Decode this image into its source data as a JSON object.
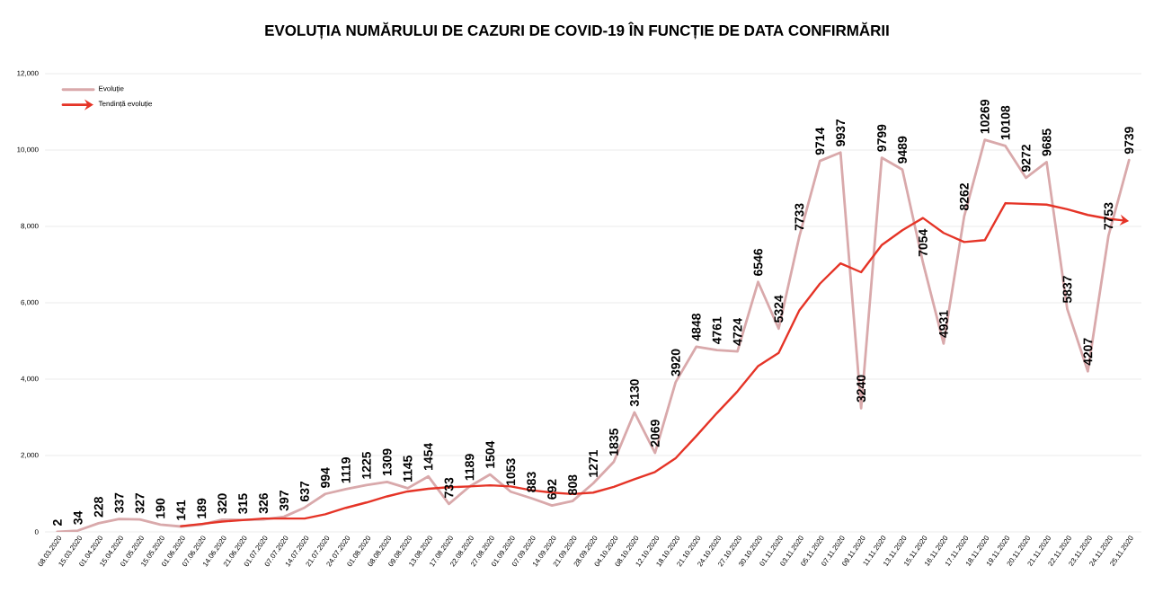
{
  "chart_data": {
    "type": "line",
    "title": "EVOLUȚIA NUMĂRULUI DE CAZURI DE COVID-19 ÎN FUNCȚIE DE DATA CONFIRMĂRII",
    "categories": [
      "08.03.2020",
      "15.03.2020",
      "01.04.2020",
      "15.04.2020",
      "01.05.2020",
      "15.05.2020",
      "01.06.2020",
      "07.06.2020",
      "14.06.2020",
      "21.06.2020",
      "01.07.2020",
      "07.07.2020",
      "14.07.2020",
      "21.07.2020",
      "24.07.2020",
      "01.08.2020",
      "08.08.2020",
      "09.08.2020",
      "13.08.2020",
      "17.08.2020",
      "22.08.2020",
      "27.08.2020",
      "01.09.2020",
      "07.09.2020",
      "14.09.2020",
      "21.09.2020",
      "28.09.2020",
      "04.10.2020",
      "08.10.2020",
      "12.10.2020",
      "18.10.2020",
      "21.10.2020",
      "24.10.2020",
      "27.10.2020",
      "30.10.2020",
      "01.11.2020",
      "03.11.2020",
      "05.11.2020",
      "07.11.2020",
      "09.11.2020",
      "11.11.2020",
      "13.11.2020",
      "15.11.2020",
      "16.11.2020",
      "17.11.2020",
      "18.11.2020",
      "19.11.2020",
      "20.11.2020",
      "21.11.2020",
      "22.11.2020",
      "23.11.2020",
      "24.11.2020",
      "25.11.2020"
    ],
    "series": [
      {
        "name": "Evoluție",
        "color": "#d9a9ab",
        "values": [
          2,
          34,
          228,
          337,
          327,
          190,
          141,
          189,
          320,
          315,
          326,
          397,
          637,
          994,
          1119,
          1225,
          1309,
          1145,
          1454,
          733,
          1189,
          1504,
          1053,
          883,
          692,
          808,
          1271,
          1835,
          3130,
          2069,
          3920,
          4848,
          4761,
          4724,
          6546,
          5324,
          7733,
          9714,
          9937,
          3240,
          9799,
          9489,
          7054,
          4931,
          8262,
          10269,
          10108,
          9272,
          9685,
          5837,
          4207,
          7753,
          9739
        ],
        "value_labels": [
          "2",
          "34",
          "228",
          "337",
          "327",
          "190",
          "141",
          "189",
          "320",
          "315",
          "326",
          "397",
          "637",
          "994",
          "1119",
          "1225",
          "1309",
          "1145",
          "1454",
          "733",
          "1189",
          "1504",
          "1053",
          "883",
          "692",
          "808",
          "1271",
          "1835",
          "3130",
          "2069",
          "3920",
          "4848",
          "4761",
          "4724",
          "6546",
          "5324",
          "7733",
          "9714",
          "9937",
          "3240",
          "9799",
          "9489",
          "7054",
          "4931",
          "8262",
          "10269",
          "10108",
          "9272",
          "9685",
          "5837",
          "4207",
          "7753",
          "9739"
        ]
      },
      {
        "name": "Tendință evoluție",
        "color": "#e53427",
        "values": [
          null,
          null,
          null,
          null,
          null,
          null,
          150,
          210,
          270,
          310,
          350,
          350,
          350,
          460,
          630,
          770,
          930,
          1060,
          1130,
          1170,
          1190,
          1220,
          1190,
          1090,
          1030,
          990,
          1030,
          1180,
          1380,
          1570,
          1930,
          2510,
          3110,
          3680,
          4340,
          4690,
          5800,
          6500,
          7030,
          6800,
          7510,
          7900,
          8220,
          7830,
          7590,
          7640,
          8610,
          8590,
          8570,
          8450,
          8300,
          8200,
          8140
        ]
      }
    ],
    "ylim": [
      0,
      12000
    ],
    "yticks": [
      {
        "value": 0,
        "label": "0"
      },
      {
        "value": 2000,
        "label": "2,000"
      },
      {
        "value": 4000,
        "label": "4,000"
      },
      {
        "value": 6000,
        "label": "6,000"
      },
      {
        "value": 8000,
        "label": "8,000"
      },
      {
        "value": 10000,
        "label": "10,000"
      },
      {
        "value": 12000,
        "label": "12,000"
      }
    ],
    "grid": "y",
    "legend": "top left",
    "marker": "none",
    "line_style": "solid"
  }
}
